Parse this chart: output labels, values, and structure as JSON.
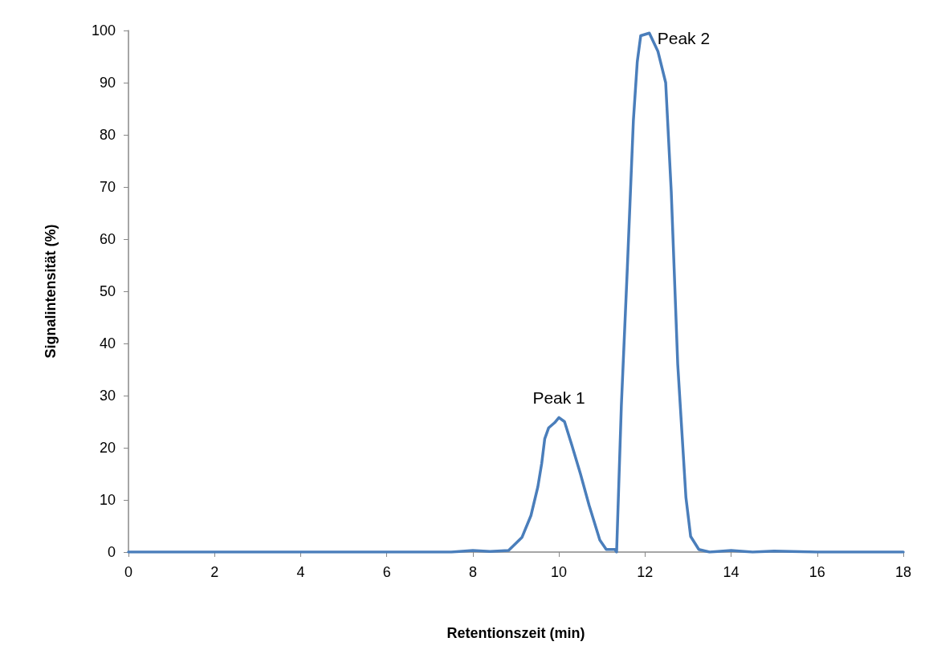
{
  "chart_data": {
    "type": "line",
    "xlabel": "Retentionszeit (min)",
    "ylabel": "Signalintensität (%)",
    "xlim": [
      0,
      18
    ],
    "xticks": [
      0,
      2,
      4,
      6,
      8,
      10,
      12,
      14,
      16,
      18
    ],
    "ylim": [
      0,
      100
    ],
    "yticks": [
      0,
      10,
      20,
      30,
      40,
      50,
      60,
      70,
      80,
      90,
      100
    ],
    "grid": false,
    "marker": "none",
    "line_style": "solid",
    "series": [
      {
        "color": "#4a7ebb",
        "x": [
          0,
          2,
          4,
          6,
          7.5,
          8,
          8.4,
          8.83,
          9.14,
          9.35,
          9.51,
          9.6,
          9.67,
          9.76,
          9.9,
          10.0,
          10.13,
          10.3,
          10.5,
          10.7,
          10.95,
          11.1,
          11.3,
          11.34,
          11.45,
          11.59,
          11.73,
          11.82,
          11.9,
          12.1,
          12.3,
          12.48,
          12.61,
          12.76,
          12.95,
          13.06,
          13.25,
          13.5,
          14,
          14.5,
          15,
          16,
          17,
          18
        ],
        "values": [
          0,
          0,
          0,
          0,
          0,
          0.3,
          0.1,
          0.3,
          2.8,
          7,
          12.5,
          17,
          21.7,
          23.8,
          24.8,
          25.8,
          25,
          20.5,
          15,
          9,
          2.3,
          0.5,
          0.5,
          0,
          28,
          54.6,
          82.8,
          94,
          99,
          99.5,
          96,
          90,
          69,
          36,
          10.5,
          3,
          0.5,
          0,
          0.3,
          0,
          0.2,
          0,
          0,
          0
        ]
      }
    ],
    "annotations": [
      {
        "text": "Peak 1",
        "x": 10,
        "y": 25.8
      },
      {
        "text": "Peak 2",
        "x": 12.1,
        "y": 99.5
      }
    ]
  }
}
